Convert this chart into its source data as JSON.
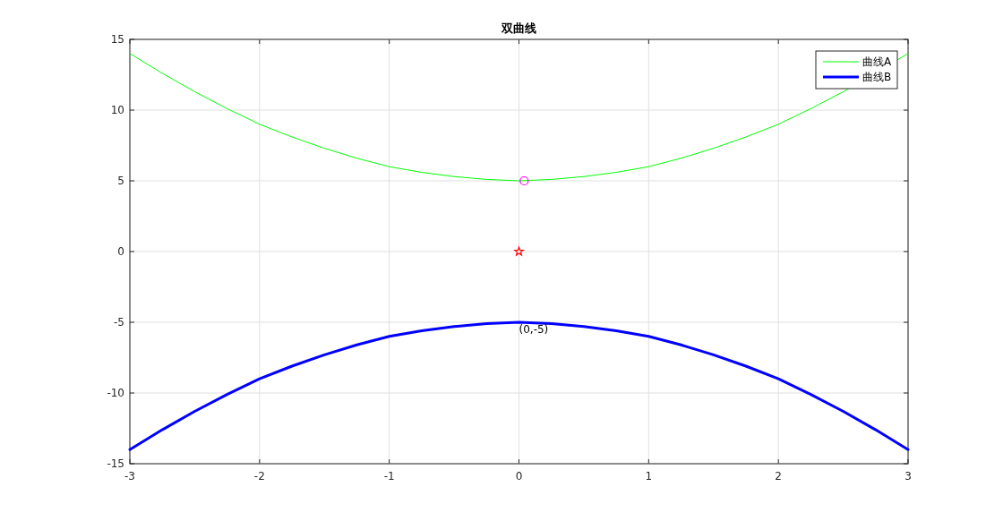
{
  "chart_data": {
    "type": "line",
    "title": "双曲线",
    "xlim": [
      -3,
      3
    ],
    "ylim": [
      -15,
      15
    ],
    "xticks": [
      -3,
      -2,
      -1,
      0,
      1,
      2,
      3
    ],
    "yticks": [
      -15,
      -10,
      -5,
      0,
      5,
      10,
      15
    ],
    "grid": true,
    "legend": "top right",
    "series": [
      {
        "name": "曲线A",
        "color": "#00ff00",
        "x": [
          -3,
          -2.75,
          -2.5,
          -2.25,
          -2,
          -1.75,
          -1.5,
          -1.25,
          -1,
          -0.75,
          -0.5,
          -0.25,
          0,
          0.25,
          0.5,
          0.75,
          1,
          1.25,
          1.5,
          1.75,
          2,
          2.25,
          2.5,
          3
        ],
        "values": [
          14,
          12.6,
          11.3,
          10.1,
          9,
          8.1,
          7.3,
          6.6,
          6,
          5.6,
          5.3,
          5.1,
          5,
          5.1,
          5.3,
          5.6,
          6,
          6.6,
          7.3,
          8.1,
          9,
          10.1,
          11.3,
          14
        ]
      },
      {
        "name": "曲线B",
        "color": "#0000ff",
        "x": [
          -3,
          -2.75,
          -2.5,
          -2.25,
          -2,
          -1.75,
          -1.5,
          -1.25,
          -1,
          -0.75,
          -0.5,
          -0.25,
          0,
          0.25,
          0.5,
          0.75,
          1,
          1.25,
          1.5,
          1.75,
          2,
          2.25,
          2.5,
          2.75,
          3
        ],
        "values": [
          -14,
          -12.6,
          -11.3,
          -10.1,
          -9,
          -8.1,
          -7.3,
          -6.6,
          -6,
          -5.6,
          -5.3,
          -5.1,
          -5,
          -5.1,
          -5.3,
          -5.6,
          -6,
          -6.6,
          -7.3,
          -8.1,
          -9,
          -10.1,
          -11.3,
          -12.6,
          -14
        ]
      },
      {
        "type": "scatter",
        "marker": "circle",
        "color": "#ff00ff",
        "x": [
          0.04
        ],
        "values": [
          5
        ]
      },
      {
        "type": "scatter",
        "marker": "star",
        "color": "#ff0000",
        "x": [
          0
        ],
        "values": [
          0
        ]
      }
    ],
    "annotations": [
      {
        "text": "(0,-5)",
        "x": 0,
        "y": -5
      }
    ]
  }
}
